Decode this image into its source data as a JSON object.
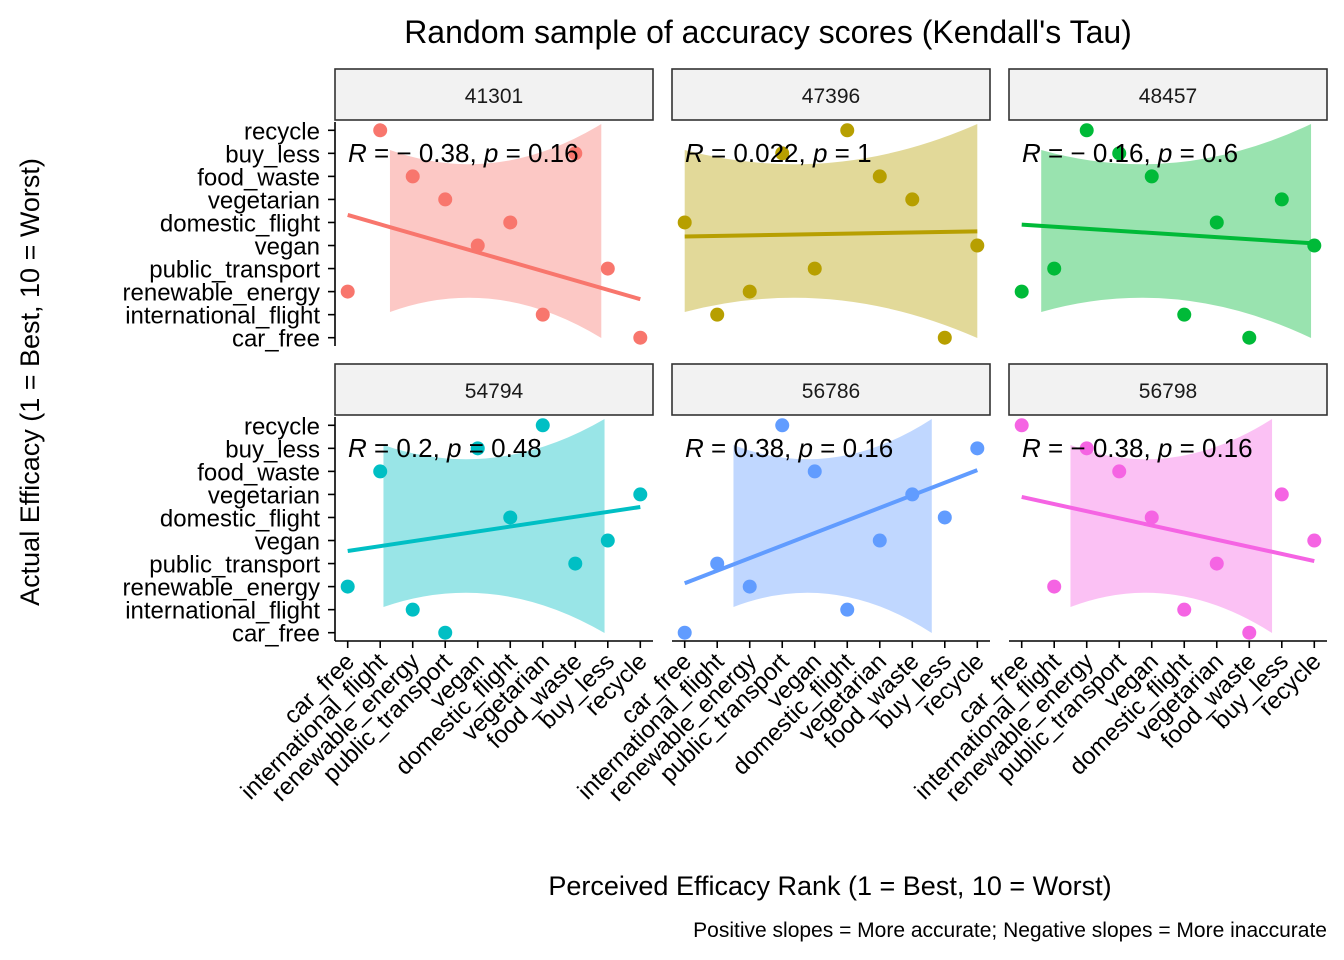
{
  "chart_data": {
    "type": "scatter",
    "title": "Random sample of accuracy scores (Kendall's Tau)",
    "xlabel": "Perceived Efficacy Rank (1 = Best, 10 = Worst)",
    "ylabel": "Actual Efficacy (1 = Best, 10 = Worst)",
    "caption": "Positive slopes = More accurate; Negative slopes = More inaccurate",
    "categories": [
      "car_free",
      "international_flight",
      "renewable_energy",
      "public_transport",
      "vegan",
      "domestic_flight",
      "vegetarian",
      "food_waste",
      "buy_less",
      "recycle"
    ],
    "grid": false,
    "legend": "none",
    "panels": [
      {
        "id": "41301",
        "color": "#F8766D",
        "fill": "#F8766D",
        "stat": {
          "r_label": "R",
          "eq": " = ",
          "r_value": "− 0.38",
          "sep": ", ",
          "p_label": "p",
          "p_value": "0.16"
        },
        "points": [
          [
            1,
            3
          ],
          [
            2,
            10
          ],
          [
            3,
            8
          ],
          [
            4,
            7
          ],
          [
            5,
            5
          ],
          [
            6,
            6
          ],
          [
            7,
            2
          ],
          [
            8,
            9
          ],
          [
            9,
            4
          ],
          [
            10,
            1
          ]
        ],
        "fit": {
          "intercept": 6.733,
          "slope": -0.4061
        },
        "band_x": [
          2.3,
          8.8
        ]
      },
      {
        "id": "47396",
        "color": "#B79F00",
        "fill": "#B79F00",
        "stat": {
          "r_label": "R",
          "eq": " = ",
          "r_value": "0.022",
          "sep": ", ",
          "p_label": "p",
          "p_value": "1"
        },
        "points": [
          [
            1,
            6
          ],
          [
            2,
            2
          ],
          [
            3,
            3
          ],
          [
            4,
            9
          ],
          [
            5,
            4
          ],
          [
            6,
            10
          ],
          [
            7,
            8
          ],
          [
            8,
            7
          ],
          [
            9,
            1
          ],
          [
            10,
            5
          ]
        ],
        "fit": {
          "intercept": 5.37,
          "slope": 0.0242
        },
        "band_x": [
          1.0,
          10.0
        ]
      },
      {
        "id": "48457",
        "color": "#00BA38",
        "fill": "#00BA38",
        "stat": {
          "r_label": "R",
          "eq": " = ",
          "r_value": "− 0.16",
          "sep": ", ",
          "p_label": "p",
          "p_value": "0.6"
        },
        "points": [
          [
            1,
            3
          ],
          [
            2,
            4
          ],
          [
            3,
            10
          ],
          [
            4,
            9
          ],
          [
            5,
            8
          ],
          [
            6,
            2
          ],
          [
            7,
            6
          ],
          [
            8,
            1
          ],
          [
            9,
            7
          ],
          [
            10,
            5
          ]
        ],
        "fit": {
          "intercept": 6.0,
          "slope": -0.0909
        },
        "band_x": [
          1.6,
          9.9
        ]
      },
      {
        "id": "54794",
        "color": "#00BFC4",
        "fill": "#00BFC4",
        "stat": {
          "r_label": "R",
          "eq": " = ",
          "r_value": "0.2",
          "sep": ", ",
          "p_label": "p",
          "p_value": "0.48"
        },
        "points": [
          [
            1,
            3
          ],
          [
            2,
            8
          ],
          [
            3,
            2
          ],
          [
            4,
            1
          ],
          [
            5,
            9
          ],
          [
            6,
            6
          ],
          [
            7,
            10
          ],
          [
            8,
            4
          ],
          [
            9,
            5
          ],
          [
            10,
            7
          ]
        ],
        "fit": {
          "intercept": 4.333,
          "slope": 0.2121
        },
        "band_x": [
          2.1,
          8.9
        ]
      },
      {
        "id": "56786",
        "color": "#619CFF",
        "fill": "#619CFF",
        "stat": {
          "r_label": "R",
          "eq": " = ",
          "r_value": "0.38",
          "sep": ", ",
          "p_label": "p",
          "p_value": "0.16"
        },
        "points": [
          [
            1,
            1
          ],
          [
            2,
            4
          ],
          [
            3,
            3
          ],
          [
            4,
            10
          ],
          [
            5,
            8
          ],
          [
            6,
            2
          ],
          [
            7,
            5
          ],
          [
            8,
            7
          ],
          [
            9,
            6
          ],
          [
            10,
            9
          ]
        ],
        "fit": {
          "intercept": 2.6,
          "slope": 0.5455
        },
        "band_x": [
          2.5,
          8.6
        ]
      },
      {
        "id": "56798",
        "color": "#F564E3",
        "fill": "#F564E3",
        "stat": {
          "r_label": "R",
          "eq": " = ",
          "r_value": "− 0.38",
          "sep": ", ",
          "p_label": "p",
          "p_value": "0.16"
        },
        "points": [
          [
            1,
            10
          ],
          [
            2,
            3
          ],
          [
            3,
            9
          ],
          [
            4,
            8
          ],
          [
            5,
            6
          ],
          [
            6,
            2
          ],
          [
            7,
            4
          ],
          [
            8,
            1
          ],
          [
            9,
            7
          ],
          [
            10,
            5
          ]
        ],
        "fit": {
          "intercept": 7.2,
          "slope": -0.3091
        },
        "band_x": [
          2.5,
          8.7
        ]
      }
    ]
  }
}
